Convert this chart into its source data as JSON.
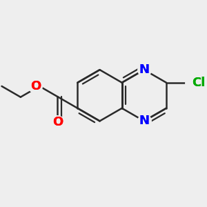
{
  "bg_color": "#eeeeee",
  "bond_color": "#2a2a2a",
  "bond_width": 1.8,
  "atom_colors": {
    "N": "#0000ff",
    "O": "#ff0000",
    "Cl": "#00aa00",
    "C": "#2a2a2a"
  },
  "font_size_atom": 13,
  "font_size_cl": 13,
  "font_size_o": 13,
  "dbo": 0.018
}
